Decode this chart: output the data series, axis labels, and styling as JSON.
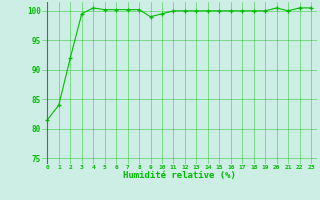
{
  "x": [
    0,
    1,
    2,
    3,
    4,
    5,
    6,
    7,
    8,
    9,
    10,
    11,
    12,
    13,
    14,
    15,
    16,
    17,
    18,
    19,
    20,
    21,
    22,
    23
  ],
  "y": [
    81.5,
    84,
    92,
    99.5,
    100.5,
    100.2,
    100.2,
    100.2,
    100.2,
    99.0,
    99.5,
    100,
    100,
    100,
    100,
    100,
    100,
    100,
    100,
    100,
    100.5,
    100,
    100.5,
    100.5
  ],
  "line_color": "#00bb00",
  "marker_color": "#00bb00",
  "bg_color": "#cceee4",
  "grid_color": "#00bb00",
  "xlabel": "Humidité relative (%)",
  "ylim": [
    74,
    101.5
  ],
  "xlim": [
    -0.5,
    23.5
  ],
  "yticks": [
    75,
    80,
    85,
    90,
    95,
    100
  ],
  "xticks": [
    0,
    1,
    2,
    3,
    4,
    5,
    6,
    7,
    8,
    9,
    10,
    11,
    12,
    13,
    14,
    15,
    16,
    17,
    18,
    19,
    20,
    21,
    22,
    23
  ],
  "xtick_labels": [
    "0",
    "1",
    "2",
    "3",
    "4",
    "5",
    "6",
    "7",
    "8",
    "9",
    "10",
    "11",
    "12",
    "13",
    "14",
    "15",
    "16",
    "17",
    "18",
    "19",
    "20",
    "21",
    "22",
    "23"
  ]
}
